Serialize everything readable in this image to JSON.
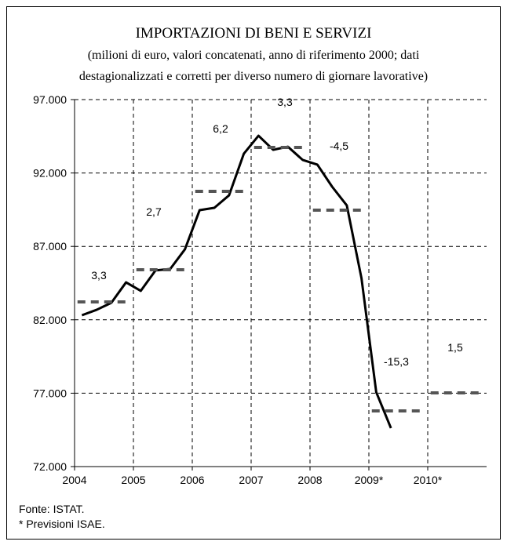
{
  "chart_data": {
    "type": "line",
    "title": "IMPORTAZIONI DI BENI E SERVIZI",
    "subtitle": [
      "(milioni di euro, valori concatenati, anno di riferimento 2000; dati",
      "destagionalizzati e corretti per diverso numero di giornare lavorative)"
    ],
    "xlim": [
      2004,
      2011
    ],
    "xticks": [
      2004,
      2005,
      2006,
      2007,
      2008,
      {
        "value": 2009,
        "label": "2009*"
      },
      {
        "value": 2010,
        "label": "2010*"
      }
    ],
    "ylim": [
      72000,
      97000
    ],
    "yticks": [
      {
        "value": 72000,
        "label": "72.000"
      },
      {
        "value": 77000,
        "label": "77.000"
      },
      {
        "value": 82000,
        "label": "82.000"
      },
      {
        "value": 87000,
        "label": "87.000"
      },
      {
        "value": 92000,
        "label": "92.000"
      },
      {
        "value": 97000,
        "label": "97.000"
      }
    ],
    "grid": true,
    "series": [
      {
        "color": "#000000",
        "style": "solid",
        "x": [
          2004.125,
          2004.375,
          2004.625,
          2004.875,
          2005.125,
          2005.375,
          2005.625,
          2005.875,
          2006.125,
          2006.375,
          2006.625,
          2006.875,
          2007.125,
          2007.375,
          2007.625,
          2007.875,
          2008.125,
          2008.375,
          2008.625,
          2008.875,
          2009.125,
          2009.375
        ],
        "values": [
          82310,
          82680,
          83160,
          84550,
          83970,
          85360,
          85460,
          86800,
          89470,
          89630,
          90480,
          93310,
          94540,
          93580,
          93790,
          92890,
          92570,
          91070,
          89790,
          84820,
          77070,
          74620
        ]
      },
      {
        "color": "#555555",
        "style": "dashed",
        "x": [
          2004.5,
          2005.5,
          2006.5,
          2007.5,
          2008.5,
          2009.5,
          2010.5
        ],
        "values": [
          83220,
          85410,
          90750,
          93740,
          89470,
          75790,
          77020
        ],
        "value_labels": [
          "3,3",
          "2,7",
          "6,2",
          "3,3",
          "-4,5",
          "-15,3",
          "1,5"
        ]
      }
    ],
    "notes": [
      "Fonte: ISTAT.",
      "* Previsioni ISAE."
    ]
  }
}
